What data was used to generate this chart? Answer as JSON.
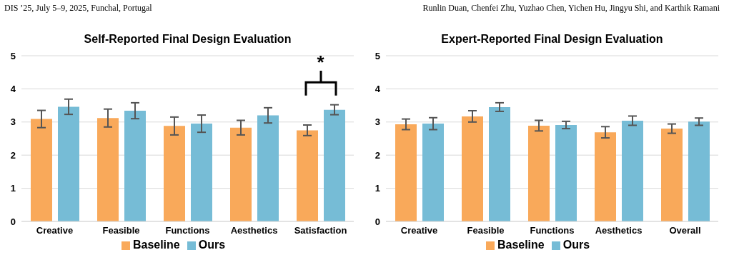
{
  "chart_data": [
    {
      "type": "bar",
      "title": "Self-Reported Final Design Evaluation",
      "annotations": [
        "DIS ’25, July 5–9, 2025, Funchal, Portugal",
        "*"
      ],
      "categories": [
        "Creative",
        "Feasible",
        "Functions",
        "Aesthetics",
        "Satisfaction"
      ],
      "series": [
        {
          "name": "Baseline",
          "color": "#f9a95a",
          "values": [
            3.09,
            3.12,
            2.88,
            2.83,
            2.75
          ],
          "errors": [
            0.26,
            0.27,
            0.27,
            0.22,
            0.16
          ]
        },
        {
          "name": "Ours",
          "color": "#76bcd6",
          "values": [
            3.46,
            3.34,
            2.95,
            3.2,
            3.37
          ],
          "errors": [
            0.23,
            0.24,
            0.26,
            0.23,
            0.15
          ]
        }
      ],
      "ylim": [
        0,
        5
      ],
      "yticks": [
        0,
        1,
        2,
        3,
        4,
        5
      ],
      "grid": "y",
      "legend": "bottom"
    },
    {
      "type": "bar",
      "title": "Expert-Reported Final Design Evaluation",
      "annotations": [
        "Runlin Duan, Chenfei Zhu, Yuzhao Chen, Yichen Hu, Jingyu Shi, and Karthik Ramani"
      ],
      "categories": [
        "Creative",
        "Feasible",
        "Functions",
        "Aesthetics",
        "Overall"
      ],
      "series": [
        {
          "name": "Baseline",
          "color": "#f9a95a",
          "values": [
            2.93,
            3.17,
            2.89,
            2.69,
            2.8
          ],
          "errors": [
            0.16,
            0.17,
            0.16,
            0.17,
            0.14
          ]
        },
        {
          "name": "Ours",
          "color": "#76bcd6",
          "values": [
            2.95,
            3.45,
            2.91,
            3.04,
            3.01
          ],
          "errors": [
            0.18,
            0.13,
            0.11,
            0.14,
            0.11
          ]
        }
      ],
      "ylim": [
        0,
        5
      ],
      "yticks": [
        0,
        1,
        2,
        3,
        4,
        5
      ],
      "grid": "y",
      "legend": "bottom"
    }
  ]
}
